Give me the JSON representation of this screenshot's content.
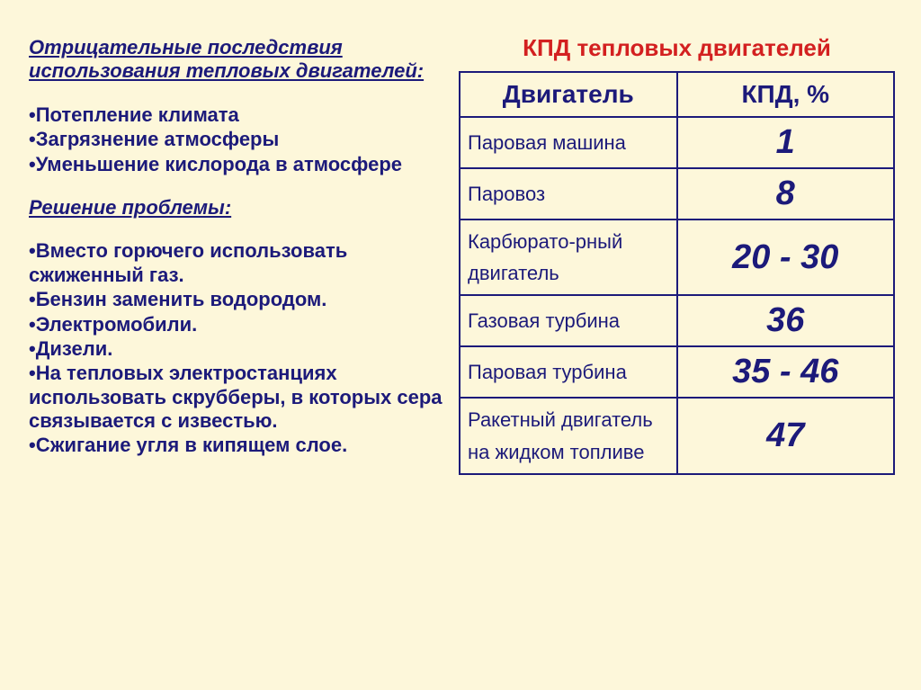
{
  "left": {
    "heading1": "Отрицательные последствия использования тепловых двигателей:",
    "list1": [
      "•Потепление климата",
      "•Загрязнение атмосферы",
      "•Уменьшение кислорода в атмосфере"
    ],
    "heading2": "Решение проблемы:",
    "list2": [
      "•Вместо горючего использовать сжиженный газ.",
      "•Бензин заменить водородом.",
      "•Электромобили.",
      "•Дизели.",
      "•На тепловых электростанциях использовать скрубберы, в которых сера связывается с известью.",
      "•Сжигание угля в кипящем слое."
    ]
  },
  "table": {
    "title": "КПД тепловых двигателей",
    "col1": "Двигатель",
    "col2": "КПД, %",
    "rows": [
      {
        "name": "Паровая машина",
        "val": "1"
      },
      {
        "name": "Паровоз",
        "val": "8"
      },
      {
        "name": "Карбюрато-рный двигатель",
        "val": "20 - 30"
      },
      {
        "name": "Газовая турбина",
        "val": "36"
      },
      {
        "name": "Паровая турбина",
        "val": "35 - 46"
      },
      {
        "name": "Ракетный двигатель на жидком топливе",
        "val": "47"
      }
    ]
  },
  "colors": {
    "background": "#fdf7da",
    "text": "#1c1a7a",
    "title": "#d32020",
    "border": "#1c1a7a"
  },
  "fonts": {
    "body_size_pt": 22,
    "table_header_size_pt": 28,
    "table_value_size_pt": 38,
    "table_title_size_pt": 26
  }
}
